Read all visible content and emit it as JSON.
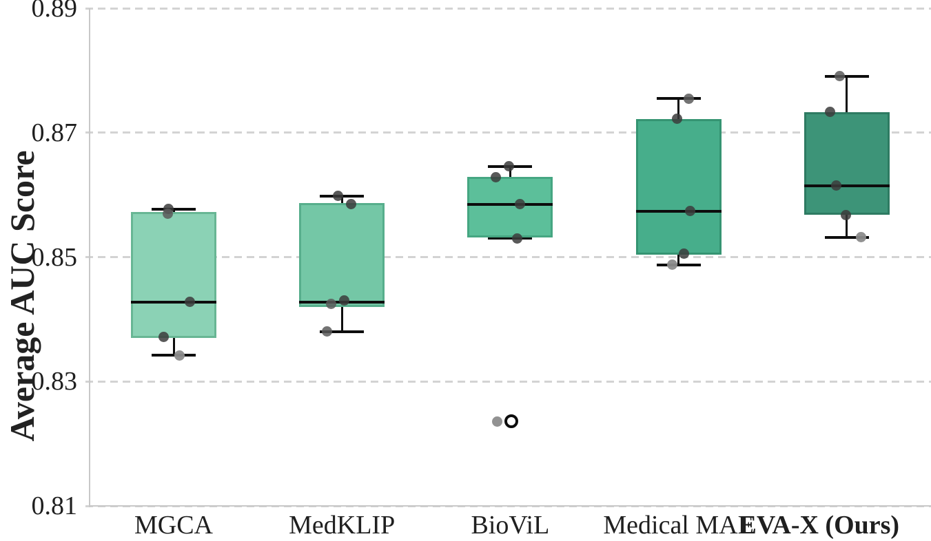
{
  "figure": {
    "background": "#ffffff",
    "spine_color": "#c8c8c8",
    "grid_color": "#d3d3d3",
    "box_line_color": "#0d0d0d",
    "point_color_dark": "rgba(60,60,60,0.85)",
    "point_color_mid": "rgba(90,90,90,0.85)",
    "point_color_light": "rgba(140,140,140,0.95)"
  },
  "chart_data": {
    "type": "box",
    "title": "",
    "xlabel": "",
    "ylabel": "Average AUC Score",
    "ylim": [
      0.81,
      0.89
    ],
    "yticks": [
      "0.81",
      "0.83",
      "0.85",
      "0.87",
      "0.89"
    ],
    "grid": "horizontal dashed gridlines at each y tick",
    "legend": "none",
    "categories": [
      "MGCA",
      "MedKLIP",
      "BioViL",
      "Medical MAE",
      "EVA-X (Ours)"
    ],
    "boxes": [
      {
        "label": "MGCA",
        "bold": false,
        "label_dx": 0,
        "fill": "#8bd2b5",
        "edge": "#68b694",
        "whislo": 0.8342,
        "q1": 0.837,
        "med": 0.8428,
        "q3": 0.8572,
        "whishi": 0.8577,
        "points": [
          {
            "v": 0.8577,
            "dx": -8,
            "tone": "dark"
          },
          {
            "v": 0.857,
            "dx": -9,
            "tone": "mid"
          },
          {
            "v": 0.8428,
            "dx": 23,
            "tone": "dark"
          },
          {
            "v": 0.8372,
            "dx": -15,
            "tone": "dark"
          },
          {
            "v": 0.8342,
            "dx": 8,
            "tone": "light"
          }
        ],
        "fliers": []
      },
      {
        "label": "MedKLIP",
        "bold": false,
        "label_dx": 0,
        "fill": "#74c7a6",
        "edge": "#57ae8c",
        "whislo": 0.838,
        "q1": 0.842,
        "med": 0.8428,
        "q3": 0.8587,
        "whishi": 0.8598,
        "points": [
          {
            "v": 0.8598,
            "dx": -6,
            "tone": "dark"
          },
          {
            "v": 0.8585,
            "dx": 13,
            "tone": "dark"
          },
          {
            "v": 0.843,
            "dx": 3,
            "tone": "dark"
          },
          {
            "v": 0.8425,
            "dx": -16,
            "tone": "mid"
          },
          {
            "v": 0.838,
            "dx": -22,
            "tone": "mid"
          }
        ],
        "fliers": []
      },
      {
        "label": "BioViL",
        "bold": false,
        "label_dx": 0,
        "fill": "#5cbf9a",
        "edge": "#46a682",
        "whislo": 0.853,
        "q1": 0.8531,
        "med": 0.8585,
        "q3": 0.8629,
        "whishi": 0.8646,
        "points": [
          {
            "v": 0.8646,
            "dx": -2,
            "tone": "dark"
          },
          {
            "v": 0.8628,
            "dx": -21,
            "tone": "dark"
          },
          {
            "v": 0.8585,
            "dx": 14,
            "tone": "dark"
          },
          {
            "v": 0.853,
            "dx": 10,
            "tone": "dark"
          },
          {
            "v": 0.8236,
            "dx": -19,
            "tone": "light"
          }
        ],
        "fliers": [
          {
            "v": 0.8236,
            "dx": 2
          }
        ]
      },
      {
        "label": "Medical MAE",
        "bold": false,
        "label_dx": 0,
        "fill": "#47ae8b",
        "edge": "#359472",
        "whislo": 0.8487,
        "q1": 0.8504,
        "med": 0.8574,
        "q3": 0.8722,
        "whishi": 0.8755,
        "points": [
          {
            "v": 0.8755,
            "dx": 15,
            "tone": "mid"
          },
          {
            "v": 0.8722,
            "dx": -2,
            "tone": "dark"
          },
          {
            "v": 0.8574,
            "dx": 17,
            "tone": "dark"
          },
          {
            "v": 0.8506,
            "dx": 8,
            "tone": "dark"
          },
          {
            "v": 0.8488,
            "dx": -9,
            "tone": "light"
          }
        ],
        "fliers": []
      },
      {
        "label": "EVA-X (Ours)",
        "bold": true,
        "label_dx": -40,
        "fill": "#3d9478",
        "edge": "#2e7b62",
        "whislo": 0.8532,
        "q1": 0.8568,
        "med": 0.8615,
        "q3": 0.8733,
        "whishi": 0.8791,
        "points": [
          {
            "v": 0.8791,
            "dx": -10,
            "tone": "mid"
          },
          {
            "v": 0.8733,
            "dx": -24,
            "tone": "dark"
          },
          {
            "v": 0.8615,
            "dx": -15,
            "tone": "dark"
          },
          {
            "v": 0.8568,
            "dx": -1,
            "tone": "dark"
          },
          {
            "v": 0.8532,
            "dx": 21,
            "tone": "light"
          }
        ],
        "fliers": []
      }
    ]
  }
}
